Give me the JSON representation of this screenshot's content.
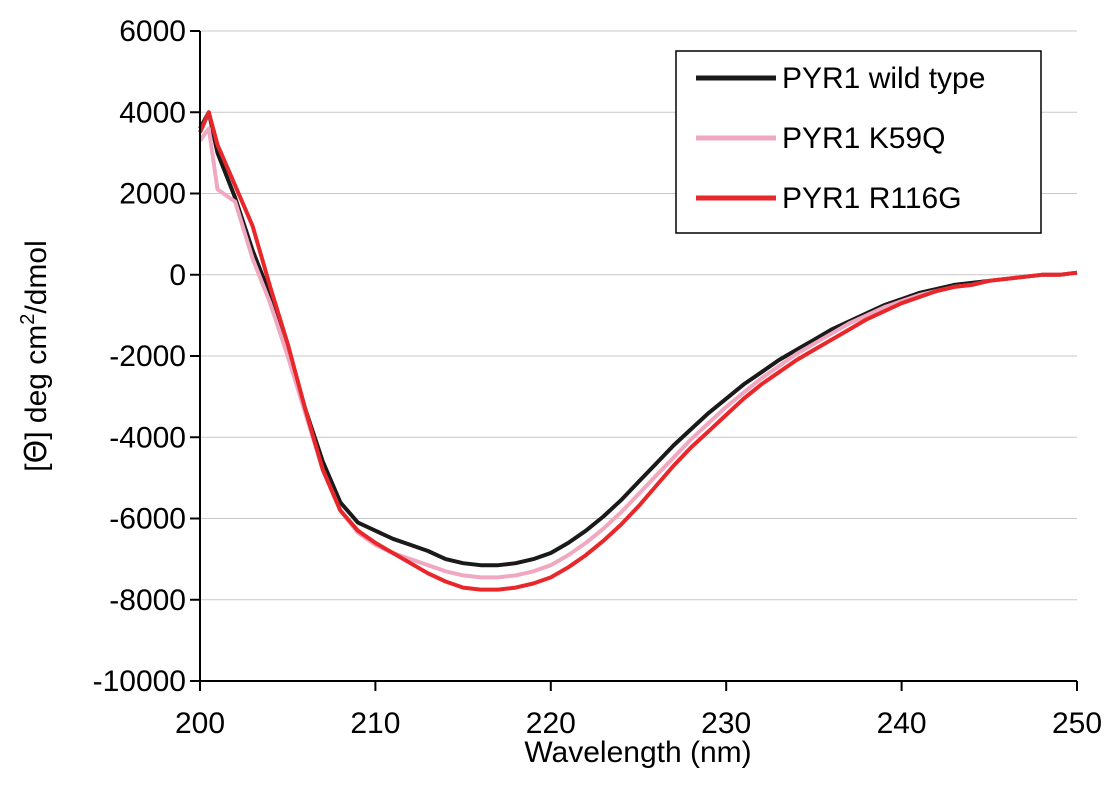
{
  "chart_data": {
    "type": "line",
    "title": "",
    "xlabel": "Wavelength (nm)",
    "ylabel_parts": [
      "[",
      "Θ",
      "] deg cm",
      "2",
      "/dmol"
    ],
    "xlim": [
      200,
      250
    ],
    "ylim": [
      -10000,
      6000
    ],
    "xticks": [
      200,
      210,
      220,
      230,
      240,
      250
    ],
    "yticks": [
      6000,
      4000,
      2000,
      0,
      -2000,
      -4000,
      -6000,
      -8000,
      -10000
    ],
    "grid": "horizontal",
    "legend_position": "top-right",
    "series": [
      {
        "name": "PYR1 wild type",
        "color": "#1a1a1a",
        "points": [
          [
            200,
            3600
          ],
          [
            200.5,
            4000
          ],
          [
            201,
            3000
          ],
          [
            202,
            1900
          ],
          [
            203,
            600
          ],
          [
            204,
            -500
          ],
          [
            205,
            -1800
          ],
          [
            206,
            -3300
          ],
          [
            207,
            -4600
          ],
          [
            208,
            -5600
          ],
          [
            209,
            -6100
          ],
          [
            210,
            -6300
          ],
          [
            211,
            -6500
          ],
          [
            212,
            -6650
          ],
          [
            213,
            -6800
          ],
          [
            214,
            -7000
          ],
          [
            215,
            -7100
          ],
          [
            216,
            -7150
          ],
          [
            217,
            -7150
          ],
          [
            218,
            -7100
          ],
          [
            219,
            -7000
          ],
          [
            220,
            -6850
          ],
          [
            221,
            -6600
          ],
          [
            222,
            -6300
          ],
          [
            223,
            -5950
          ],
          [
            224,
            -5550
          ],
          [
            225,
            -5100
          ],
          [
            226,
            -4650
          ],
          [
            227,
            -4200
          ],
          [
            228,
            -3800
          ],
          [
            229,
            -3400
          ],
          [
            230,
            -3050
          ],
          [
            231,
            -2700
          ],
          [
            232,
            -2400
          ],
          [
            233,
            -2100
          ],
          [
            234,
            -1850
          ],
          [
            235,
            -1600
          ],
          [
            236,
            -1350
          ],
          [
            237,
            -1150
          ],
          [
            238,
            -950
          ],
          [
            239,
            -750
          ],
          [
            240,
            -600
          ],
          [
            241,
            -450
          ],
          [
            242,
            -350
          ],
          [
            243,
            -250
          ],
          [
            244,
            -200
          ],
          [
            245,
            -150
          ],
          [
            246,
            -100
          ],
          [
            247,
            -50
          ],
          [
            248,
            0
          ],
          [
            249,
            0
          ],
          [
            250,
            50
          ]
        ]
      },
      {
        "name": "PYR1 K59Q",
        "color": "#f0a8c0",
        "points": [
          [
            200,
            3300
          ],
          [
            200.5,
            3600
          ],
          [
            201,
            2100
          ],
          [
            202,
            1800
          ],
          [
            203,
            400
          ],
          [
            204,
            -700
          ],
          [
            205,
            -2000
          ],
          [
            206,
            -3400
          ],
          [
            207,
            -4800
          ],
          [
            208,
            -5800
          ],
          [
            209,
            -6350
          ],
          [
            210,
            -6650
          ],
          [
            211,
            -6850
          ],
          [
            212,
            -7000
          ],
          [
            213,
            -7150
          ],
          [
            214,
            -7300
          ],
          [
            215,
            -7400
          ],
          [
            216,
            -7450
          ],
          [
            217,
            -7450
          ],
          [
            218,
            -7400
          ],
          [
            219,
            -7300
          ],
          [
            220,
            -7150
          ],
          [
            221,
            -6900
          ],
          [
            222,
            -6600
          ],
          [
            223,
            -6250
          ],
          [
            224,
            -5850
          ],
          [
            225,
            -5400
          ],
          [
            226,
            -4950
          ],
          [
            227,
            -4500
          ],
          [
            228,
            -4050
          ],
          [
            229,
            -3650
          ],
          [
            230,
            -3250
          ],
          [
            231,
            -2900
          ],
          [
            232,
            -2550
          ],
          [
            233,
            -2250
          ],
          [
            234,
            -1950
          ],
          [
            235,
            -1700
          ],
          [
            236,
            -1450
          ],
          [
            237,
            -1200
          ],
          [
            238,
            -1000
          ],
          [
            239,
            -800
          ],
          [
            240,
            -650
          ],
          [
            241,
            -500
          ],
          [
            242,
            -400
          ],
          [
            243,
            -300
          ],
          [
            244,
            -250
          ],
          [
            245,
            -150
          ],
          [
            246,
            -100
          ],
          [
            247,
            -50
          ],
          [
            248,
            0
          ],
          [
            249,
            0
          ],
          [
            250,
            50
          ]
        ]
      },
      {
        "name": "PYR1 R116G",
        "color": "#e8272b",
        "points": [
          [
            200,
            3500
          ],
          [
            200.5,
            4000
          ],
          [
            201,
            3200
          ],
          [
            202,
            2200
          ],
          [
            203,
            1200
          ],
          [
            204,
            -300
          ],
          [
            205,
            -1700
          ],
          [
            206,
            -3300
          ],
          [
            207,
            -4800
          ],
          [
            208,
            -5800
          ],
          [
            209,
            -6300
          ],
          [
            210,
            -6600
          ],
          [
            211,
            -6850
          ],
          [
            212,
            -7100
          ],
          [
            213,
            -7350
          ],
          [
            214,
            -7550
          ],
          [
            215,
            -7700
          ],
          [
            216,
            -7750
          ],
          [
            217,
            -7750
          ],
          [
            218,
            -7700
          ],
          [
            219,
            -7600
          ],
          [
            220,
            -7450
          ],
          [
            221,
            -7200
          ],
          [
            222,
            -6900
          ],
          [
            223,
            -6550
          ],
          [
            224,
            -6150
          ],
          [
            225,
            -5700
          ],
          [
            226,
            -5200
          ],
          [
            227,
            -4700
          ],
          [
            228,
            -4250
          ],
          [
            229,
            -3850
          ],
          [
            230,
            -3450
          ],
          [
            231,
            -3050
          ],
          [
            232,
            -2700
          ],
          [
            233,
            -2400
          ],
          [
            234,
            -2100
          ],
          [
            235,
            -1850
          ],
          [
            236,
            -1600
          ],
          [
            237,
            -1350
          ],
          [
            238,
            -1100
          ],
          [
            239,
            -900
          ],
          [
            240,
            -700
          ],
          [
            241,
            -550
          ],
          [
            242,
            -400
          ],
          [
            243,
            -300
          ],
          [
            244,
            -250
          ],
          [
            245,
            -150
          ],
          [
            246,
            -100
          ],
          [
            247,
            -50
          ],
          [
            248,
            0
          ],
          [
            249,
            0
          ],
          [
            250,
            50
          ]
        ]
      }
    ]
  }
}
